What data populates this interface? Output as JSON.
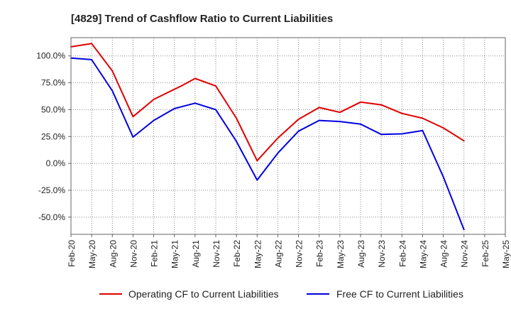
{
  "chart_data": {
    "type": "line",
    "title": "[4829]  Trend of Cashflow Ratio to Current Liabilities",
    "xlabel": "",
    "ylabel": "",
    "categories": [
      "Feb-20",
      "May-20",
      "Aug-20",
      "Nov-20",
      "Feb-21",
      "May-21",
      "Aug-21",
      "Nov-21",
      "Feb-22",
      "May-22",
      "Aug-22",
      "Nov-22",
      "Feb-23",
      "May-23",
      "Aug-23",
      "Nov-23",
      "Feb-24",
      "May-24",
      "Aug-24",
      "Nov-24",
      "Feb-25",
      "May-25"
    ],
    "x_tick_labels": [
      "Feb-20",
      "May-20",
      "Aug-20",
      "Nov-20",
      "Feb-21",
      "May-21",
      "Aug-21",
      "Nov-21",
      "Feb-22",
      "May-22",
      "Aug-22",
      "Nov-22",
      "Feb-23",
      "May-23",
      "Aug-23",
      "Nov-23",
      "Feb-24",
      "May-24",
      "Aug-24",
      "Nov-24",
      "Feb-25",
      "May-25"
    ],
    "y_ticks": [
      100,
      75,
      50,
      25,
      0,
      -25,
      -50
    ],
    "y_tick_labels": [
      "100.0%",
      "75.0%",
      "50.0%",
      "25.0%",
      "0.0%",
      "-25.0%",
      "-50.0%"
    ],
    "ylim": [
      -66,
      117
    ],
    "grid": true,
    "legend_position": "bottom",
    "series": [
      {
        "name": "Operating CF to Current Liabilities",
        "color": "#e00000",
        "x": [
          "Feb-20",
          "Mar-20",
          "May-20",
          "Aug-20",
          "Nov-20",
          "Feb-21",
          "May-21",
          "Jun-21",
          "Aug-21",
          "Nov-21",
          "Feb-22",
          "May-22",
          "Aug-22",
          "Nov-22",
          "Feb-23",
          "May-23",
          "Aug-23",
          "Nov-23",
          "Feb-24",
          "May-24",
          "Aug-24",
          "Nov-24"
        ],
        "values": [
          108.5,
          109.5,
          111.5,
          86,
          43.5,
          59.5,
          69,
          72,
          79,
          72,
          42,
          2.5,
          23.5,
          41,
          52,
          47.5,
          57,
          54.5,
          46.5,
          42,
          33,
          21
        ]
      },
      {
        "name": "Free CF to Current Liabilities",
        "color": "#0000e0",
        "x": [
          "Feb-20",
          "May-20",
          "Aug-20",
          "Nov-20",
          "Feb-21",
          "May-21",
          "Aug-21",
          "Nov-21",
          "Feb-22",
          "May-22",
          "Aug-22",
          "Nov-22",
          "Feb-23",
          "May-23",
          "Aug-23",
          "Nov-23",
          "Feb-24",
          "May-24",
          "Aug-24",
          "Nov-24"
        ],
        "values": [
          98,
          96.5,
          67.5,
          24.5,
          40,
          51,
          56,
          50,
          20.5,
          -15.5,
          9.5,
          30,
          40,
          39,
          36.5,
          27,
          27.5,
          30.5,
          -12.5,
          -61.5
        ]
      }
    ]
  }
}
